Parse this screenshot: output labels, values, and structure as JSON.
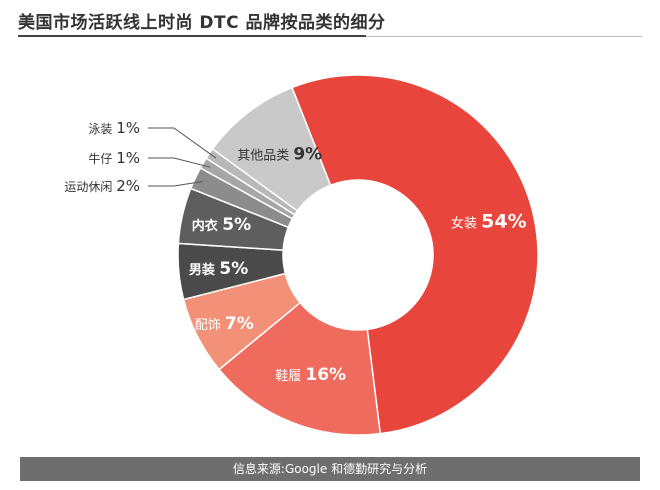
{
  "title": "美国市场活跃线上时尚 DTC 品牌按品类的细分",
  "footer": "信息来源:Google 和德勤研究与分析",
  "chart_data": {
    "type": "pie",
    "donut": true,
    "title": "美国市场活跃线上时尚 DTC 品牌按品类的细分",
    "categories": [
      "女装",
      "鞋履",
      "配饰",
      "男装",
      "内衣",
      "运动休闲",
      "牛仔",
      "泳装",
      "其他品类"
    ],
    "values": [
      54,
      16,
      7,
      5,
      5,
      2,
      1,
      1,
      9
    ],
    "labels": [
      "54%",
      "16%",
      "7%",
      "5%",
      "5%",
      "2%",
      "1%",
      "1%",
      "9%"
    ],
    "colors": [
      "#e8453c",
      "#ef6b5e",
      "#f39178",
      "#4a4a4a",
      "#5e5e5e",
      "#8c8c8c",
      "#a6a6a6",
      "#b8b8b8",
      "#c9c9c9"
    ],
    "legend": "none"
  }
}
